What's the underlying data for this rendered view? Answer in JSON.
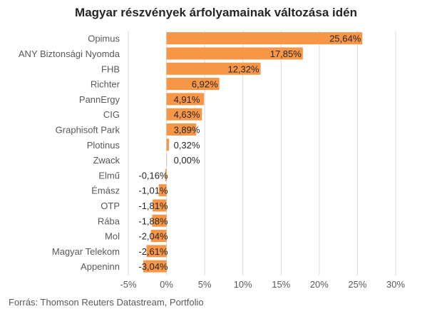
{
  "chart_data": {
    "type": "bar",
    "orientation": "horizontal",
    "title": "Magyar részvények árfolyamainak változása idén",
    "source": "Forrás: Thomson Reuters Datastream, Portfolio",
    "categories": [
      "Opimus",
      "ANY Biztonsági Nyomda",
      "FHB",
      "Richter",
      "PannErgy",
      "CIG",
      "Graphisoft Park",
      "Plotinus",
      "Zwack",
      "Elmű",
      "Émász",
      "OTP",
      "Rába",
      "Mol",
      "Magyar Telekom",
      "Appeninn"
    ],
    "values": [
      25.64,
      17.85,
      12.32,
      6.92,
      4.91,
      4.63,
      3.89,
      0.32,
      0.0,
      -0.16,
      -1.01,
      -1.81,
      -1.88,
      -2.04,
      -2.61,
      -3.04
    ],
    "value_labels": [
      "25,64%",
      "17,85%",
      "12,32%",
      "6,92%",
      "4,91%",
      "4,63%",
      "3,89%",
      "0,32%",
      "0,00%",
      "-0,16%",
      "-1,01%",
      "-1,81%",
      "-1,88%",
      "-2,04%",
      "-2,61%",
      "-3,04%"
    ],
    "xlim": [
      -5,
      30
    ],
    "x_ticks": [
      -5,
      0,
      5,
      10,
      15,
      20,
      25,
      30
    ],
    "x_tick_labels": [
      "-5%",
      "0%",
      "5%",
      "10%",
      "15%",
      "20%",
      "25%",
      "30%"
    ],
    "grid": "vertical",
    "bar_color": "#F79646",
    "grid_color": "#D9D9D9"
  }
}
